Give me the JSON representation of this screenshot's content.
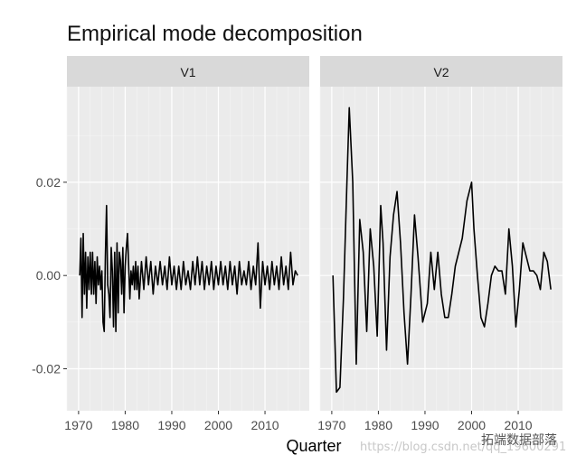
{
  "chart_data": {
    "type": "line",
    "title": "Empirical mode decomposition",
    "xlabel": "Quarter",
    "ylabel": "",
    "xlim": [
      1967.5,
      2019.5
    ],
    "ylim": [
      -0.029,
      0.0405
    ],
    "x_ticks": [
      1970,
      1980,
      1990,
      2000,
      2010
    ],
    "x_tick_labels": [
      "1970",
      "1980",
      "1990",
      "2000",
      "2010"
    ],
    "y_ticks": [
      -0.02,
      0.0,
      0.02
    ],
    "y_tick_labels": [
      "-0.02",
      "0.00",
      "0.02"
    ],
    "grid": true,
    "facets": [
      {
        "label": "V1",
        "x": [
          1970.25,
          1970.5,
          1970.75,
          1971,
          1971.25,
          1971.5,
          1971.75,
          1972,
          1972.25,
          1972.5,
          1972.75,
          1973,
          1973.25,
          1973.5,
          1973.75,
          1974,
          1974.25,
          1974.5,
          1974.75,
          1975,
          1975.25,
          1975.5,
          1975.75,
          1976,
          1976.25,
          1976.5,
          1976.75,
          1977,
          1977.25,
          1977.5,
          1977.75,
          1978,
          1978.25,
          1978.5,
          1978.75,
          1979,
          1979.25,
          1979.5,
          1979.75,
          1980,
          1980.25,
          1980.5,
          1980.75,
          1981,
          1981.25,
          1981.5,
          1981.75,
          1982,
          1982.25,
          1982.5,
          1982.75,
          1983,
          1983.5,
          1984,
          1984.5,
          1985,
          1985.5,
          1986,
          1986.5,
          1987,
          1987.5,
          1988,
          1988.5,
          1989,
          1989.5,
          1990,
          1990.5,
          1991,
          1991.5,
          1992,
          1992.5,
          1993,
          1993.5,
          1994,
          1994.5,
          1995,
          1995.5,
          1996,
          1996.5,
          1997,
          1997.5,
          1998,
          1998.5,
          1999,
          1999.5,
          2000,
          2000.5,
          2001,
          2001.5,
          2002,
          2002.5,
          2003,
          2003.5,
          2004,
          2004.5,
          2005,
          2005.5,
          2006,
          2006.5,
          2007,
          2007.5,
          2008,
          2008.5,
          2009,
          2009.5,
          2010,
          2010.5,
          2011,
          2011.5,
          2012,
          2012.5,
          2013,
          2013.5,
          2014,
          2014.5,
          2015,
          2015.5,
          2016,
          2016.5,
          2017
        ],
        "y": [
          0.0,
          0.008,
          -0.009,
          0.009,
          -0.004,
          0.005,
          -0.007,
          0.004,
          -0.003,
          0.005,
          -0.004,
          0.005,
          -0.004,
          0.003,
          -0.006,
          0.004,
          -0.002,
          0.002,
          -0.003,
          0.001,
          -0.01,
          -0.012,
          0.004,
          0.015,
          -0.002,
          -0.004,
          -0.009,
          0.006,
          0.001,
          -0.011,
          0.005,
          -0.012,
          0.007,
          -0.008,
          0.005,
          0.003,
          -0.004,
          0.006,
          -0.008,
          0.002,
          0.006,
          0.009,
          0.002,
          -0.005,
          0.001,
          -0.002,
          0.002,
          -0.003,
          0.003,
          -0.003,
          0.002,
          -0.005,
          0.003,
          -0.003,
          0.004,
          -0.002,
          0.003,
          -0.004,
          0.002,
          -0.002,
          0.003,
          -0.002,
          0.002,
          -0.003,
          0.004,
          -0.002,
          0.002,
          -0.003,
          0.002,
          -0.003,
          0.003,
          -0.002,
          0.001,
          -0.003,
          0.003,
          -0.002,
          0.004,
          -0.002,
          0.003,
          -0.003,
          0.002,
          -0.002,
          0.003,
          -0.003,
          0.002,
          -0.002,
          0.003,
          -0.002,
          0.002,
          -0.003,
          0.003,
          -0.002,
          0.002,
          -0.004,
          0.003,
          -0.002,
          0.001,
          -0.002,
          0.003,
          -0.003,
          0.002,
          -0.002,
          0.007,
          -0.007,
          0.003,
          -0.002,
          0.002,
          -0.003,
          0.003,
          -0.002,
          0.002,
          -0.003,
          0.004,
          -0.002,
          0.002,
          -0.003,
          0.005,
          -0.002,
          0.001,
          0.0
        ]
      },
      {
        "label": "V2",
        "x": [
          1970.25,
          1971,
          1971.75,
          1972.5,
          1973.25,
          1973.75,
          1974.5,
          1975.25,
          1976,
          1976.75,
          1977.5,
          1978.25,
          1979,
          1979.75,
          1980.5,
          1981,
          1981.75,
          1982.5,
          1983.25,
          1984,
          1984.75,
          1985.5,
          1986.25,
          1987,
          1987.75,
          1988.5,
          1989.5,
          1990.5,
          1991.25,
          1992,
          1992.75,
          1993.5,
          1994.25,
          1995,
          1995.75,
          1996.5,
          1998,
          1999,
          2000,
          2000.5,
          2001.25,
          2002,
          2002.75,
          2003.5,
          2004.25,
          2005,
          2005.75,
          2006.5,
          2007.25,
          2008,
          2008.75,
          2009.5,
          2010.25,
          2011,
          2011.75,
          2012.5,
          2013.25,
          2014,
          2014.75,
          2015.5,
          2016.25,
          2017
        ],
        "y": [
          0.0,
          -0.025,
          -0.024,
          -0.005,
          0.02,
          0.036,
          0.02,
          -0.019,
          0.012,
          0.005,
          -0.012,
          0.01,
          0.002,
          -0.013,
          0.015,
          0.007,
          -0.016,
          0.004,
          0.013,
          0.018,
          0.007,
          -0.008,
          -0.019,
          -0.004,
          0.013,
          0.004,
          -0.01,
          -0.006,
          0.005,
          -0.003,
          0.005,
          -0.004,
          -0.009,
          -0.009,
          -0.004,
          0.002,
          0.008,
          0.016,
          0.02,
          0.01,
          0.0,
          -0.009,
          -0.011,
          -0.006,
          0.0,
          0.002,
          0.001,
          0.001,
          -0.004,
          0.01,
          0.002,
          -0.011,
          -0.003,
          0.007,
          0.004,
          0.001,
          0.001,
          0.0,
          -0.003,
          0.005,
          0.003,
          -0.003
        ]
      }
    ]
  },
  "watermark": {
    "url_text": "https://blog.csdn.net/qq_19600291",
    "brand_text": "拓端数据部落"
  }
}
